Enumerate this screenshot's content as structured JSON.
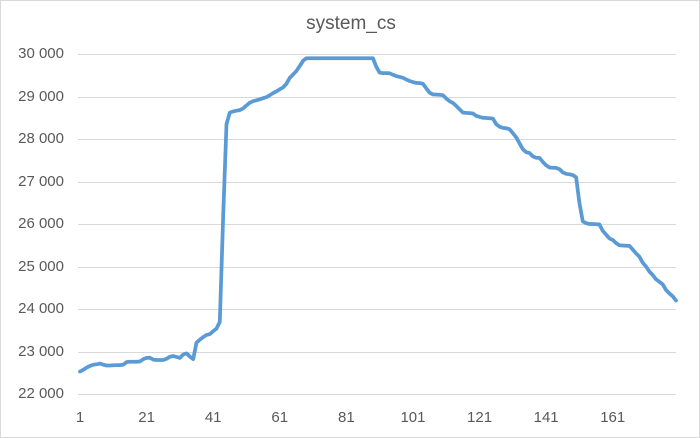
{
  "chart_data": {
    "type": "line",
    "title": "system_cs",
    "xlabel": "",
    "ylabel": "",
    "x_start": 1,
    "x_tick_labels": [
      {
        "label": "1",
        "value": 1
      },
      {
        "label": "21",
        "value": 21
      },
      {
        "label": "41",
        "value": 41
      },
      {
        "label": "61",
        "value": 61
      },
      {
        "label": "81",
        "value": 81
      },
      {
        "label": "101",
        "value": 101
      },
      {
        "label": "121",
        "value": 121
      },
      {
        "label": "141",
        "value": 141
      },
      {
        "label": "161",
        "value": 161
      }
    ],
    "y_tick_labels": [
      {
        "label": "30 000",
        "value": 30000
      },
      {
        "label": "29 000",
        "value": 29000
      },
      {
        "label": "28 000",
        "value": 28000
      },
      {
        "label": "27 000",
        "value": 27000
      },
      {
        "label": "26 000",
        "value": 26000
      },
      {
        "label": "25 000",
        "value": 25000
      },
      {
        "label": "24 000",
        "value": 24000
      },
      {
        "label": "23 000",
        "value": 23000
      },
      {
        "label": "22 000",
        "value": 22000
      }
    ],
    "ylim": [
      22000,
      30000
    ],
    "xlim": [
      1,
      180
    ],
    "grid": "horizontal",
    "legend": "none",
    "colors": {
      "series": "#5B9BD5",
      "gridline": "#D9D9D9",
      "text": "#595959",
      "background": "#FFFFFF",
      "border": "#D9D9D9"
    },
    "values": [
      22530,
      22570,
      22620,
      22660,
      22690,
      22700,
      22715,
      22690,
      22670,
      22670,
      22675,
      22680,
      22680,
      22690,
      22750,
      22760,
      22760,
      22760,
      22765,
      22820,
      22850,
      22855,
      22810,
      22800,
      22800,
      22800,
      22830,
      22875,
      22895,
      22870,
      22850,
      22930,
      22955,
      22880,
      22820,
      23210,
      23280,
      23340,
      23390,
      23410,
      23480,
      23540,
      23700,
      26200,
      28350,
      28620,
      28650,
      28665,
      28680,
      28720,
      28790,
      28855,
      28890,
      28910,
      28935,
      28960,
      28985,
      29030,
      29080,
      29120,
      29170,
      29215,
      29300,
      29440,
      29520,
      29600,
      29720,
      29840,
      29900,
      29900,
      29900,
      29900,
      29900,
      29900,
      29900,
      29900,
      29900,
      29900,
      29900,
      29900,
      29900,
      29900,
      29900,
      29900,
      29900,
      29900,
      29900,
      29900,
      29900,
      29700,
      29560,
      29550,
      29550,
      29545,
      29510,
      29480,
      29460,
      29440,
      29400,
      29365,
      29340,
      29320,
      29315,
      29300,
      29190,
      29090,
      29050,
      29045,
      29040,
      29030,
      28950,
      28890,
      28850,
      28780,
      28700,
      28620,
      28615,
      28610,
      28600,
      28545,
      28520,
      28500,
      28495,
      28490,
      28480,
      28350,
      28290,
      28260,
      28255,
      28230,
      28140,
      28040,
      27900,
      27760,
      27690,
      27670,
      27590,
      27560,
      27555,
      27460,
      27380,
      27330,
      27325,
      27320,
      27290,
      27215,
      27180,
      27170,
      27150,
      27100,
      26500,
      26060,
      26020,
      26000,
      26000,
      25995,
      25990,
      25840,
      25750,
      25660,
      25625,
      25550,
      25500,
      25495,
      25490,
      25485,
      25400,
      25310,
      25230,
      25090,
      25000,
      24880,
      24800,
      24700,
      24640,
      24580,
      24450,
      24370,
      24300,
      24200
    ]
  }
}
